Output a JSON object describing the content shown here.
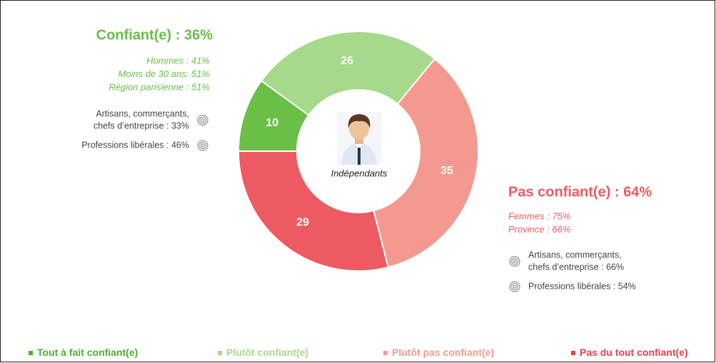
{
  "chart_data": {
    "type": "donut",
    "categories": [
      "Tout à fait confiant(e)",
      "Plutôt confiant(e)",
      "Plutôt pas confiant(e)",
      "Pas du tout confiant(e)"
    ],
    "values": [
      10,
      26,
      35,
      29
    ],
    "colors": [
      "#6abf47",
      "#a6d98b",
      "#f4998f",
      "#ee5a62"
    ],
    "legend_colors": [
      "#4caf2e",
      "#a6d98b",
      "#f4998f",
      "#e8404c"
    ],
    "center_label": "Indépendants",
    "annotations": {
      "left": {
        "headline": "Confiant(e) : 36%",
        "color": "#6abf47",
        "details": [
          "Hommes : 41%",
          "Moins de 30 ans: 51%",
          "Région parisienne : 51%"
        ],
        "segments": [
          [
            "Artisans, commerçants,",
            "chefs d’entreprise : 33%"
          ],
          [
            "Professions libérales : 46%"
          ]
        ]
      },
      "right": {
        "headline": "Pas confiant(e) : 64%",
        "color": "#ee5a62",
        "details": [
          "Femmes : 75%",
          "Province : 66%"
        ],
        "segments": [
          [
            "Artisans, commerçants,",
            "chefs d’entreprise : 66%"
          ],
          [
            "Professions libérales : 54%"
          ]
        ]
      }
    }
  }
}
